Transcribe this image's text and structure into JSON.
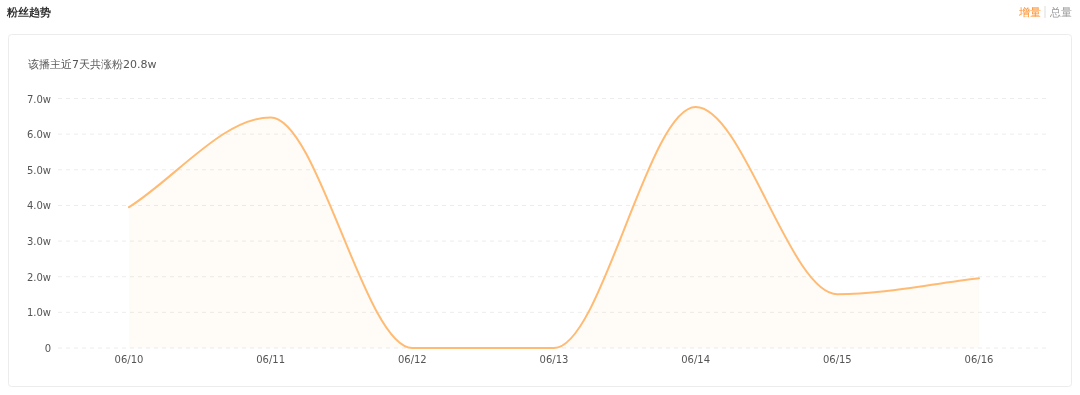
{
  "chart_data": {
    "type": "area",
    "title": "粉丝趋势",
    "subtitle": "该播主近7天共涨粉20.8w",
    "annotations": [
      "增量",
      "总量"
    ],
    "categories": [
      "06/10",
      "06/11",
      "06/12",
      "06/13",
      "06/14",
      "06/15",
      "06/16"
    ],
    "series": [
      {
        "color": "#ffbb73",
        "values": [
          3.95,
          6.47,
          0,
          0,
          6.76,
          1.51,
          1.96
        ]
      }
    ],
    "ylim": [
      0,
      7
    ],
    "yticks": [
      0,
      {
        "value": 1,
        "label": "1.0w"
      },
      {
        "value": 2,
        "label": "2.0w"
      },
      {
        "value": 3,
        "label": "3.0w"
      },
      {
        "value": 4,
        "label": "4.0w"
      },
      {
        "value": 5,
        "label": "5.0w"
      },
      {
        "value": 6,
        "label": "6.0w"
      },
      {
        "value": 7,
        "label": "7.0w"
      }
    ],
    "grid": "y"
  }
}
